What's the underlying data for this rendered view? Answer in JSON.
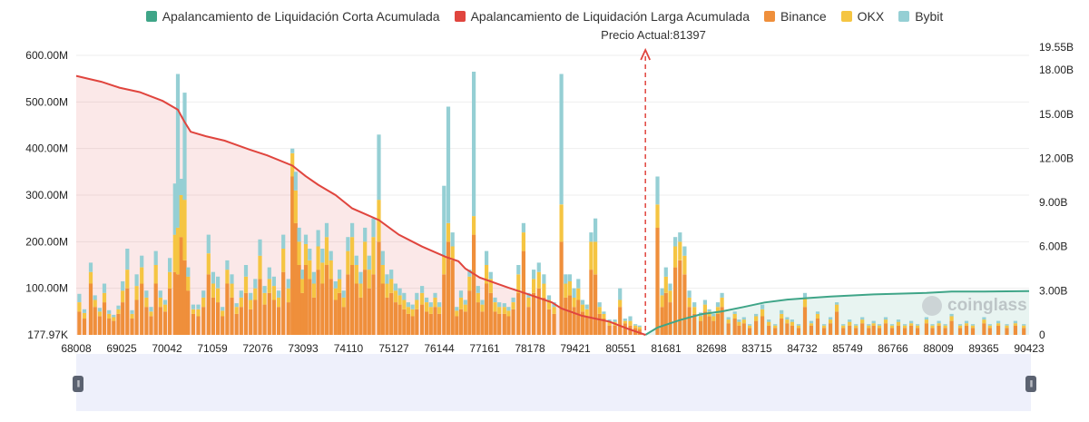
{
  "legend": {
    "short_cum": {
      "label": "Apalancamiento de Liquidación Corta Acumulada",
      "color": "#3fa588"
    },
    "long_cum": {
      "label": "Apalancamiento de Liquidación Larga Acumulada",
      "color": "#e0453e"
    },
    "binance": {
      "label": "Binance",
      "color": "#ef8f3b"
    },
    "okx": {
      "label": "OKX",
      "color": "#f5c542"
    },
    "bybit": {
      "label": "Bybit",
      "color": "#95cfd4"
    }
  },
  "current_price_label": "Precio Actual:81397",
  "watermark": "coinglass",
  "slider": {
    "left_handle_glyph": "||",
    "right_handle_glyph": "||"
  },
  "chart_data": {
    "type": "bar",
    "x_tick_labels": [
      "68008",
      "69025",
      "70042",
      "71059",
      "72076",
      "73093",
      "74110",
      "75127",
      "76144",
      "77161",
      "78178",
      "79421",
      "80551",
      "81681",
      "82698",
      "83715",
      "84732",
      "85749",
      "86766",
      "88009",
      "89365",
      "90423"
    ],
    "x_range": [
      68008,
      90423
    ],
    "current_price": 81397,
    "left_axis": {
      "tick_labels": [
        "177.97K",
        "100.00M",
        "200.00M",
        "300.00M",
        "400.00M",
        "500.00M",
        "600.00M"
      ],
      "range_millions": [
        0.18,
        600
      ]
    },
    "right_axis": {
      "tick_labels": [
        "0",
        "3.00B",
        "6.00B",
        "9.00B",
        "12.00B",
        "15.00B",
        "18.00B",
        "19.55B"
      ],
      "range_billions": [
        0,
        19.55
      ]
    },
    "bar_stack_order": [
      "Binance",
      "OKX",
      "Bybit"
    ],
    "bars": [
      [
        68080,
        50,
        20,
        18
      ],
      [
        68200,
        35,
        12,
        8
      ],
      [
        68350,
        110,
        25,
        20
      ],
      [
        68450,
        60,
        15,
        10
      ],
      [
        68560,
        40,
        10,
        8
      ],
      [
        68670,
        70,
        20,
        20
      ],
      [
        68780,
        35,
        10,
        8
      ],
      [
        68890,
        30,
        8,
        5
      ],
      [
        69000,
        45,
        10,
        8
      ],
      [
        69100,
        70,
        25,
        20
      ],
      [
        69210,
        100,
        40,
        45
      ],
      [
        69320,
        35,
        10,
        8
      ],
      [
        69430,
        75,
        30,
        25
      ],
      [
        69550,
        110,
        35,
        25
      ],
      [
        69660,
        60,
        20,
        15
      ],
      [
        69770,
        40,
        10,
        10
      ],
      [
        69880,
        110,
        40,
        30
      ],
      [
        69990,
        60,
        20,
        15
      ],
      [
        70100,
        50,
        15,
        10
      ],
      [
        70210,
        100,
        35,
        30
      ],
      [
        70330,
        135,
        80,
        110
      ],
      [
        70400,
        130,
        100,
        330
      ],
      [
        70480,
        210,
        90,
        35
      ],
      [
        70560,
        160,
        130,
        230
      ],
      [
        70640,
        95,
        30,
        20
      ],
      [
        70760,
        45,
        10,
        10
      ],
      [
        70880,
        40,
        15,
        10
      ],
      [
        71000,
        60,
        20,
        15
      ],
      [
        71120,
        130,
        45,
        40
      ],
      [
        71230,
        80,
        30,
        25
      ],
      [
        71340,
        70,
        30,
        25
      ],
      [
        71450,
        40,
        12,
        8
      ],
      [
        71560,
        110,
        30,
        20
      ],
      [
        71670,
        80,
        30,
        20
      ],
      [
        71780,
        45,
        15,
        8
      ],
      [
        71890,
        60,
        20,
        15
      ],
      [
        72000,
        90,
        35,
        25
      ],
      [
        72110,
        55,
        20,
        15
      ],
      [
        72220,
        75,
        25,
        20
      ],
      [
        72330,
        120,
        50,
        35
      ],
      [
        72440,
        65,
        25,
        15
      ],
      [
        72550,
        90,
        30,
        25
      ],
      [
        72660,
        75,
        30,
        20
      ],
      [
        72770,
        60,
        20,
        15
      ],
      [
        72880,
        135,
        50,
        30
      ],
      [
        73000,
        70,
        30,
        20
      ],
      [
        73093,
        340,
        50,
        10
      ],
      [
        73170,
        240,
        70,
        40
      ],
      [
        73250,
        150,
        50,
        30
      ],
      [
        73330,
        90,
        30,
        20
      ],
      [
        73410,
        150,
        45,
        20
      ],
      [
        73500,
        120,
        40,
        25
      ],
      [
        73600,
        80,
        30,
        25
      ],
      [
        73700,
        140,
        50,
        35
      ],
      [
        73800,
        110,
        45,
        30
      ],
      [
        73900,
        150,
        60,
        30
      ],
      [
        74000,
        120,
        40,
        20
      ],
      [
        74110,
        75,
        25,
        15
      ],
      [
        74200,
        90,
        30,
        20
      ],
      [
        74300,
        60,
        20,
        15
      ],
      [
        74400,
        130,
        50,
        30
      ],
      [
        74500,
        150,
        60,
        30
      ],
      [
        74600,
        110,
        40,
        20
      ],
      [
        74700,
        80,
        30,
        25
      ],
      [
        74800,
        140,
        60,
        30
      ],
      [
        74900,
        100,
        40,
        30
      ],
      [
        75000,
        130,
        80,
        40
      ],
      [
        75127,
        200,
        90,
        140
      ],
      [
        75220,
        110,
        40,
        30
      ],
      [
        75320,
        80,
        30,
        20
      ],
      [
        75420,
        90,
        30,
        20
      ],
      [
        75520,
        70,
        25,
        15
      ],
      [
        75620,
        65,
        20,
        15
      ],
      [
        75720,
        55,
        20,
        15
      ],
      [
        75820,
        45,
        15,
        10
      ],
      [
        75920,
        40,
        15,
        10
      ],
      [
        76020,
        55,
        20,
        15
      ],
      [
        76144,
        65,
        25,
        15
      ],
      [
        76250,
        50,
        20,
        10
      ],
      [
        76350,
        45,
        15,
        10
      ],
      [
        76450,
        60,
        20,
        10
      ],
      [
        76550,
        45,
        15,
        10
      ],
      [
        76660,
        130,
        40,
        150
      ],
      [
        76760,
        200,
        40,
        250
      ],
      [
        76860,
        160,
        30,
        30
      ],
      [
        76960,
        40,
        12,
        8
      ],
      [
        77060,
        55,
        25,
        15
      ],
      [
        77161,
        50,
        15,
        10
      ],
      [
        77260,
        95,
        30,
        15
      ],
      [
        77360,
        215,
        40,
        310
      ],
      [
        77460,
        70,
        20,
        15
      ],
      [
        77560,
        50,
        15,
        10
      ],
      [
        77660,
        110,
        40,
        30
      ],
      [
        77760,
        90,
        30,
        15
      ],
      [
        77860,
        50,
        20,
        10
      ],
      [
        77960,
        45,
        15,
        10
      ],
      [
        78080,
        45,
        15,
        8
      ],
      [
        78178,
        40,
        12,
        8
      ],
      [
        78290,
        55,
        15,
        10
      ],
      [
        78410,
        90,
        40,
        20
      ],
      [
        78530,
        180,
        40,
        20
      ],
      [
        78650,
        60,
        20,
        10
      ],
      [
        78770,
        90,
        30,
        20
      ],
      [
        78890,
        100,
        35,
        20
      ],
      [
        79010,
        80,
        30,
        20
      ],
      [
        79130,
        55,
        20,
        10
      ],
      [
        79250,
        45,
        15,
        10
      ],
      [
        79421,
        200,
        80,
        280
      ],
      [
        79520,
        80,
        30,
        20
      ],
      [
        79620,
        85,
        30,
        15
      ],
      [
        79720,
        60,
        20,
        20
      ],
      [
        79820,
        75,
        25,
        20
      ],
      [
        79920,
        50,
        15,
        10
      ],
      [
        80020,
        40,
        15,
        10
      ],
      [
        80120,
        140,
        60,
        20
      ],
      [
        80220,
        130,
        70,
        50
      ],
      [
        80320,
        45,
        15,
        10
      ],
      [
        80420,
        35,
        10,
        5
      ],
      [
        80551,
        20,
        8,
        5
      ],
      [
        80680,
        20,
        8,
        5
      ],
      [
        80800,
        60,
        15,
        25
      ],
      [
        80920,
        25,
        5,
        5
      ],
      [
        81040,
        20,
        10,
        10
      ],
      [
        81160,
        15,
        5,
        3
      ],
      [
        81260,
        12,
        5,
        3
      ],
      [
        81681,
        230,
        50,
        60
      ],
      [
        81790,
        60,
        25,
        15
      ],
      [
        81880,
        90,
        35,
        20
      ],
      [
        81980,
        70,
        25,
        15
      ],
      [
        82100,
        145,
        45,
        20
      ],
      [
        82210,
        160,
        40,
        20
      ],
      [
        82320,
        130,
        40,
        20
      ],
      [
        82430,
        60,
        20,
        15
      ],
      [
        82550,
        45,
        15,
        10
      ],
      [
        82698,
        30,
        10,
        8
      ],
      [
        82800,
        50,
        15,
        10
      ],
      [
        82900,
        40,
        10,
        5
      ],
      [
        83000,
        30,
        10,
        5
      ],
      [
        83100,
        45,
        15,
        10
      ],
      [
        83200,
        60,
        20,
        10
      ],
      [
        83350,
        25,
        8,
        5
      ],
      [
        83500,
        35,
        10,
        5
      ],
      [
        83600,
        20,
        8,
        5
      ],
      [
        83715,
        25,
        8,
        5
      ],
      [
        83850,
        15,
        5,
        3
      ],
      [
        84000,
        30,
        10,
        5
      ],
      [
        84150,
        40,
        15,
        10
      ],
      [
        84300,
        20,
        8,
        5
      ],
      [
        84450,
        15,
        5,
        3
      ],
      [
        84600,
        35,
        10,
        8
      ],
      [
        84732,
        25,
        8,
        5
      ],
      [
        84850,
        20,
        8,
        5
      ],
      [
        85000,
        15,
        5,
        3
      ],
      [
        85150,
        60,
        20,
        10
      ],
      [
        85300,
        20,
        5,
        5
      ],
      [
        85450,
        35,
        10,
        5
      ],
      [
        85600,
        15,
        5,
        3
      ],
      [
        85749,
        25,
        8,
        5
      ],
      [
        85900,
        50,
        15,
        5
      ],
      [
        86050,
        15,
        5,
        3
      ],
      [
        86200,
        20,
        8,
        5
      ],
      [
        86350,
        15,
        5,
        3
      ],
      [
        86500,
        25,
        8,
        5
      ],
      [
        86650,
        15,
        5,
        3
      ],
      [
        86766,
        20,
        5,
        5
      ],
      [
        86900,
        15,
        5,
        3
      ],
      [
        87050,
        25,
        8,
        5
      ],
      [
        87200,
        15,
        5,
        3
      ],
      [
        87350,
        20,
        8,
        5
      ],
      [
        87500,
        15,
        5,
        3
      ],
      [
        87650,
        20,
        5,
        5
      ],
      [
        87800,
        15,
        5,
        3
      ],
      [
        88009,
        25,
        8,
        5
      ],
      [
        88150,
        15,
        5,
        3
      ],
      [
        88300,
        20,
        5,
        5
      ],
      [
        88450,
        15,
        5,
        3
      ],
      [
        88600,
        30,
        10,
        5
      ],
      [
        88800,
        15,
        5,
        3
      ],
      [
        88950,
        20,
        5,
        5
      ],
      [
        89100,
        15,
        5,
        3
      ],
      [
        89365,
        25,
        8,
        5
      ],
      [
        89500,
        15,
        5,
        3
      ],
      [
        89700,
        20,
        5,
        5
      ],
      [
        89900,
        15,
        5,
        3
      ],
      [
        90100,
        20,
        5,
        5
      ],
      [
        90300,
        15,
        5,
        3
      ]
    ],
    "long_cum_line": [
      [
        68008,
        17.6
      ],
      [
        68300,
        17.4
      ],
      [
        68600,
        17.2
      ],
      [
        69025,
        16.8
      ],
      [
        69500,
        16.5
      ],
      [
        70042,
        15.9
      ],
      [
        70400,
        15.3
      ],
      [
        70550,
        14.5
      ],
      [
        70700,
        13.8
      ],
      [
        71059,
        13.5
      ],
      [
        71500,
        13.2
      ],
      [
        72076,
        12.6
      ],
      [
        72500,
        12.2
      ],
      [
        73093,
        11.5
      ],
      [
        73400,
        10.8
      ],
      [
        73700,
        10.2
      ],
      [
        74110,
        9.5
      ],
      [
        74500,
        8.6
      ],
      [
        75127,
        7.8
      ],
      [
        75600,
        6.8
      ],
      [
        76144,
        6.0
      ],
      [
        76700,
        5.3
      ],
      [
        77000,
        5.0
      ],
      [
        77161,
        4.5
      ],
      [
        77500,
        3.9
      ],
      [
        78178,
        3.2
      ],
      [
        78700,
        2.7
      ],
      [
        79200,
        2.2
      ],
      [
        79421,
        1.8
      ],
      [
        79900,
        1.3
      ],
      [
        80551,
        0.9
      ],
      [
        81000,
        0.4
      ],
      [
        81250,
        0.15
      ],
      [
        81397,
        0.0
      ]
    ],
    "short_cum_line": [
      [
        81397,
        0.0
      ],
      [
        81681,
        0.5
      ],
      [
        82200,
        1.0
      ],
      [
        82698,
        1.4
      ],
      [
        83200,
        1.6
      ],
      [
        83715,
        1.9
      ],
      [
        84200,
        2.2
      ],
      [
        84732,
        2.4
      ],
      [
        85200,
        2.5
      ],
      [
        85749,
        2.6
      ],
      [
        86766,
        2.75
      ],
      [
        88009,
        2.85
      ],
      [
        88600,
        2.95
      ],
      [
        89365,
        2.95
      ],
      [
        90423,
        2.98
      ]
    ]
  }
}
